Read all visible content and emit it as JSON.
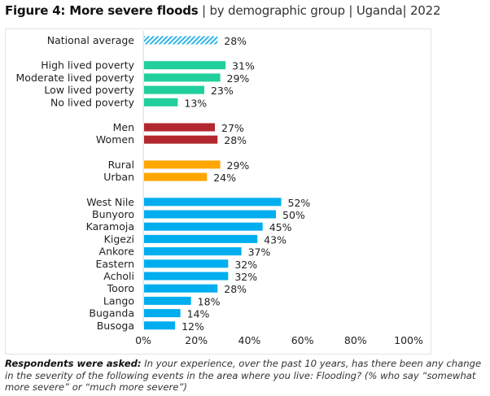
{
  "chart_data": {
    "type": "bar",
    "orientation": "horizontal",
    "title": "Figure 4: More severe floods",
    "subtitle": "| by demographic group | Uganda| 2022",
    "xlabel": "",
    "ylabel": "",
    "xlim": [
      0,
      100
    ],
    "x_ticks": [
      "0%",
      "20%",
      "40%",
      "60%",
      "80%",
      "100%"
    ],
    "x_tick_values": [
      0,
      20,
      40,
      60,
      80,
      100
    ],
    "grid": false,
    "legend": "none",
    "value_suffix": "%",
    "groups": [
      {
        "name": "national",
        "color": "#33b5e5",
        "pattern": "hatched",
        "categories": [
          "National average"
        ],
        "values": [
          28
        ]
      },
      {
        "name": "lived-poverty",
        "color": "#21cf9c",
        "pattern": "solid",
        "categories": [
          "High lived poverty",
          "Moderate lived poverty",
          "Low lived poverty",
          "No lived poverty"
        ],
        "values": [
          31,
          29,
          23,
          13
        ]
      },
      {
        "name": "gender",
        "color": "#b2282e",
        "pattern": "solid",
        "categories": [
          "Men",
          "Women"
        ],
        "values": [
          27,
          28
        ]
      },
      {
        "name": "location",
        "color": "#ffa600",
        "pattern": "solid",
        "categories": [
          "Rural",
          "Urban"
        ],
        "values": [
          29,
          24
        ]
      },
      {
        "name": "region",
        "color": "#00aeef",
        "pattern": "solid",
        "categories": [
          "West Nile",
          "Bunyoro",
          "Karamoja",
          "Kigezi",
          "Ankore",
          "Eastern",
          "Acholi",
          "Tooro",
          "Lango",
          "Buganda",
          "Busoga"
        ],
        "values": [
          52,
          50,
          45,
          43,
          37,
          32,
          32,
          28,
          18,
          14,
          12
        ]
      }
    ]
  },
  "header": {
    "title_bold": "Figure 4: More severe floods",
    "title_rest": " | by demographic group | Uganda| 2022"
  },
  "footnote": {
    "lead": "Respondents were asked:",
    "text": " In your experience, over the past 10 years, has there been any change in the severity of the following events in the area where you live: Flooding? (% who say “somewhat more severe” or “much more severe”)"
  }
}
